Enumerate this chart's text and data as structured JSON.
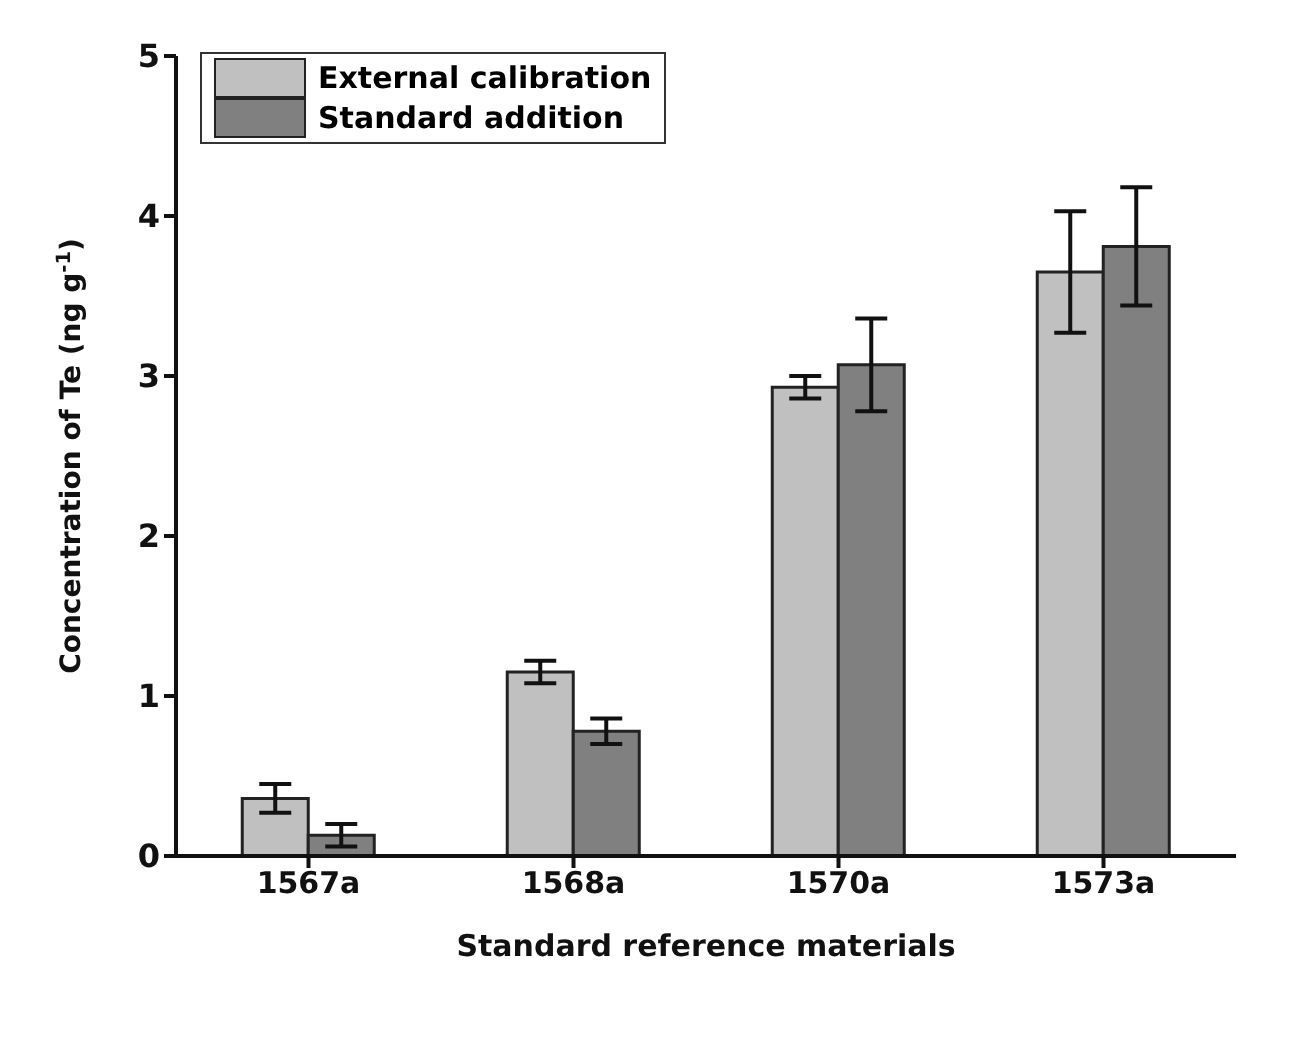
{
  "chart_data": {
    "type": "bar",
    "xlabel": "Standard reference materials",
    "ylabel": "Concentration of Te (ng g$^{-1}$)",
    "categories": [
      "1567a",
      "1568a",
      "1570a",
      "1573a"
    ],
    "series": [
      {
        "name": "External calibration",
        "color": "#c0c0c0",
        "values": [
          0.36,
          1.15,
          2.93,
          3.65
        ],
        "errors": [
          0.09,
          0.07,
          0.07,
          0.38
        ]
      },
      {
        "name": "Standard addition",
        "color": "#808080",
        "values": [
          0.13,
          0.78,
          3.07,
          3.81
        ],
        "errors": [
          0.07,
          0.08,
          0.29,
          0.37
        ]
      }
    ],
    "ylim": [
      0,
      5
    ],
    "yticks": [
      0,
      1,
      2,
      3,
      4,
      5
    ],
    "grid": false,
    "legend": "top left"
  }
}
